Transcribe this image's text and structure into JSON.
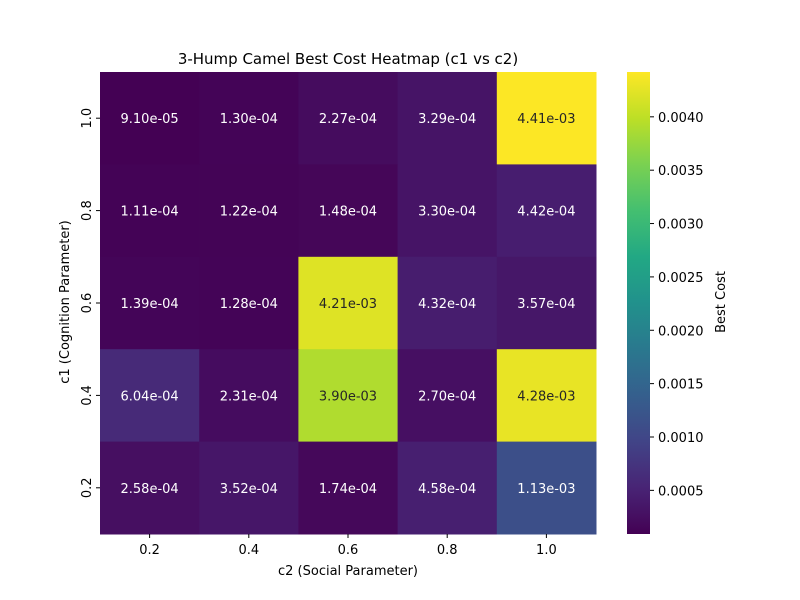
{
  "chart_data": {
    "type": "heatmap",
    "title": "3-Hump Camel Best Cost Heatmap (c1 vs c2)",
    "xlabel": "c2 (Social Parameter)",
    "ylabel": "c1 (Cognition Parameter)",
    "x_categories": [
      "0.2",
      "0.4",
      "0.6",
      "0.8",
      "1.0"
    ],
    "y_categories": [
      "1.0",
      "0.8",
      "0.6",
      "0.4",
      "0.2"
    ],
    "values": [
      [
        9.1e-05,
        0.00013,
        0.000227,
        0.000329,
        0.00441
      ],
      [
        0.000111,
        0.000122,
        0.000148,
        0.00033,
        0.000442
      ],
      [
        0.000139,
        0.000128,
        0.00421,
        0.000432,
        0.000357
      ],
      [
        0.000604,
        0.000231,
        0.0039,
        0.00027,
        0.00428
      ],
      [
        0.000258,
        0.000352,
        0.000174,
        0.000458,
        0.00113
      ]
    ],
    "cell_labels": [
      [
        "9.10e-05",
        "1.30e-04",
        "2.27e-04",
        "3.29e-04",
        "4.41e-03"
      ],
      [
        "1.11e-04",
        "1.22e-04",
        "1.48e-04",
        "3.30e-04",
        "4.42e-04"
      ],
      [
        "1.39e-04",
        "1.28e-04",
        "4.21e-03",
        "4.32e-04",
        "3.57e-04"
      ],
      [
        "6.04e-04",
        "2.31e-04",
        "3.90e-03",
        "2.70e-04",
        "4.28e-03"
      ],
      [
        "2.58e-04",
        "3.52e-04",
        "1.74e-04",
        "4.58e-04",
        "1.13e-03"
      ]
    ],
    "colormap": "viridis",
    "vmin": 9.1e-05,
    "vmax": 0.00442,
    "colorbar": {
      "label": "Best Cost",
      "ticks": [
        0.0005,
        0.001,
        0.0015,
        0.002,
        0.0025,
        0.003,
        0.0035,
        0.004
      ],
      "tick_labels": [
        "0.0005",
        "0.0010",
        "0.0015",
        "0.0020",
        "0.0025",
        "0.0030",
        "0.0035",
        "0.0040"
      ]
    }
  }
}
